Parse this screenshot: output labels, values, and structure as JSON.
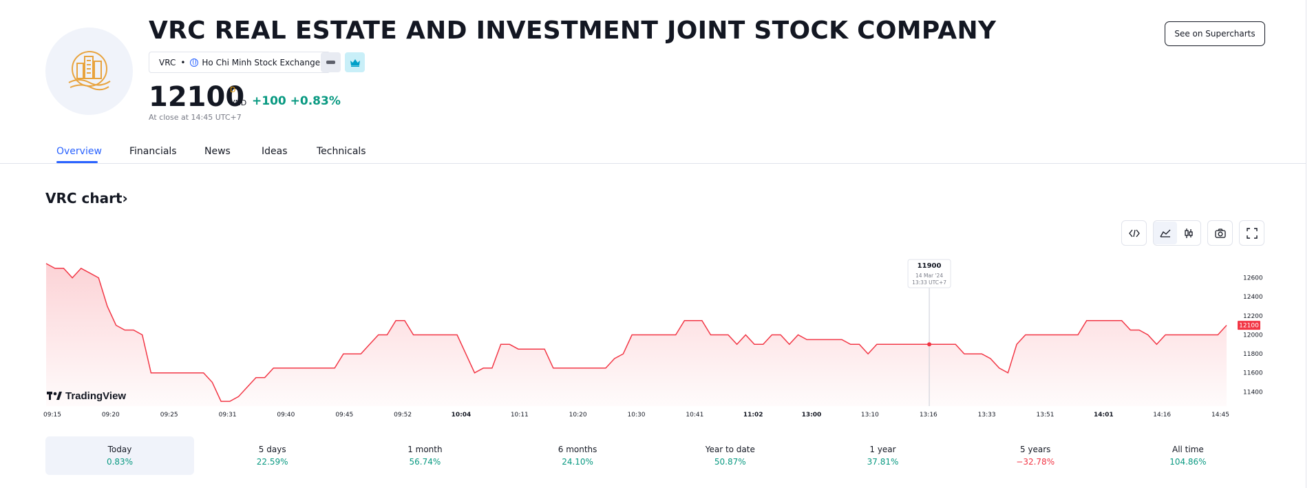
{
  "company": {
    "title": "VRC REAL ESTATE AND INVESTMENT JOINT STOCK COMPANY",
    "ticker": "VRC",
    "exchange": "Ho Chi Minh Stock Exchange",
    "logo_icon": "building-waves-logo-icon"
  },
  "quote": {
    "price": "12100",
    "superscript": "D",
    "currency": "VND",
    "change": "+100",
    "change_pct": "+0.83%",
    "close_text": "At close at 14:45 UTC+7"
  },
  "header": {
    "supercharts_button": "See on Supercharts"
  },
  "tabs": [
    {
      "label": "Overview",
      "active": true
    },
    {
      "label": "Financials",
      "active": false
    },
    {
      "label": "News",
      "active": false
    },
    {
      "label": "Ideas",
      "active": false
    },
    {
      "label": "Technicals",
      "active": false
    }
  ],
  "chart_section": {
    "heading": "VRC chart",
    "heading_chevron": "›",
    "watermark": "TradingView",
    "toolbar": [
      "embed-code-icon",
      "line-chart-icon",
      "candles-icon",
      "camera-icon",
      "fullscreen-icon"
    ]
  },
  "chart_data": {
    "type": "area",
    "color": "#f23645",
    "y_ticks": [
      "11400",
      "11600",
      "11800",
      "12000",
      "12200",
      "12400",
      "12600"
    ],
    "ylim": [
      11250,
      12800
    ],
    "x_ticks": [
      {
        "label": "09:15",
        "bold": false
      },
      {
        "label": "09:20",
        "bold": false
      },
      {
        "label": "09:25",
        "bold": false
      },
      {
        "label": "09:31",
        "bold": false
      },
      {
        "label": "09:40",
        "bold": false
      },
      {
        "label": "09:45",
        "bold": false
      },
      {
        "label": "09:52",
        "bold": false
      },
      {
        "label": "10:04",
        "bold": true
      },
      {
        "label": "10:11",
        "bold": false
      },
      {
        "label": "10:20",
        "bold": false
      },
      {
        "label": "10:30",
        "bold": false
      },
      {
        "label": "10:41",
        "bold": false
      },
      {
        "label": "11:02",
        "bold": true
      },
      {
        "label": "13:00",
        "bold": true
      },
      {
        "label": "13:10",
        "bold": false
      },
      {
        "label": "13:16",
        "bold": false
      },
      {
        "label": "13:33",
        "bold": false
      },
      {
        "label": "13:51",
        "bold": false
      },
      {
        "label": "14:01",
        "bold": true
      },
      {
        "label": "14:16",
        "bold": false
      },
      {
        "label": "14:45",
        "bold": false
      }
    ],
    "values": [
      12750,
      12700,
      12700,
      12600,
      12700,
      12650,
      12600,
      12300,
      12100,
      12050,
      12050,
      12000,
      11600,
      11600,
      11600,
      11600,
      11600,
      11600,
      11600,
      11500,
      11300,
      11300,
      11350,
      11450,
      11550,
      11550,
      11650,
      11650,
      11650,
      11650,
      11650,
      11650,
      11650,
      11650,
      11800,
      11800,
      11800,
      11900,
      12000,
      12000,
      12150,
      12150,
      12000,
      12000,
      12000,
      12000,
      12000,
      12000,
      11800,
      11600,
      11650,
      11650,
      11900,
      11900,
      11850,
      11850,
      11850,
      11850,
      11650,
      11650,
      11650,
      11650,
      11650,
      11650,
      11650,
      11750,
      11800,
      12000,
      12000,
      12000,
      12000,
      12000,
      12000,
      12150,
      12150,
      12150,
      12000,
      12000,
      12000,
      11900,
      12000,
      11900,
      11900,
      12000,
      12000,
      11900,
      12000,
      11950,
      11950,
      11950,
      11950,
      11950,
      11900,
      11900,
      11800,
      11900,
      11900,
      11900,
      11900,
      11900,
      11900,
      11900,
      11900,
      11900,
      11900,
      11800,
      11800,
      11800,
      11750,
      11650,
      11600,
      11900,
      12000,
      12000,
      12000,
      12000,
      12000,
      12000,
      12000,
      12150,
      12150,
      12150,
      12150,
      12150,
      12050,
      12050,
      12000,
      11900,
      12000,
      12000,
      12000,
      12000,
      12000,
      12000,
      12000,
      12100
    ],
    "last_value_label": "12100",
    "tooltip": {
      "value": "11900",
      "date": "14 Mar '24",
      "time": "13:33 UTC+7",
      "point_index": 101
    }
  },
  "ranges": [
    {
      "label": "Today",
      "value": "0.83%",
      "selected": true,
      "negative": false
    },
    {
      "label": "5 days",
      "value": "22.59%",
      "selected": false,
      "negative": false
    },
    {
      "label": "1 month",
      "value": "56.74%",
      "selected": false,
      "negative": false
    },
    {
      "label": "6 months",
      "value": "24.10%",
      "selected": false,
      "negative": false
    },
    {
      "label": "Year to date",
      "value": "50.87%",
      "selected": false,
      "negative": false
    },
    {
      "label": "1 year",
      "value": "37.81%",
      "selected": false,
      "negative": false
    },
    {
      "label": "5 years",
      "value": "−32.78%",
      "selected": false,
      "negative": true
    },
    {
      "label": "All time",
      "value": "104.86%",
      "selected": false,
      "negative": false
    }
  ]
}
